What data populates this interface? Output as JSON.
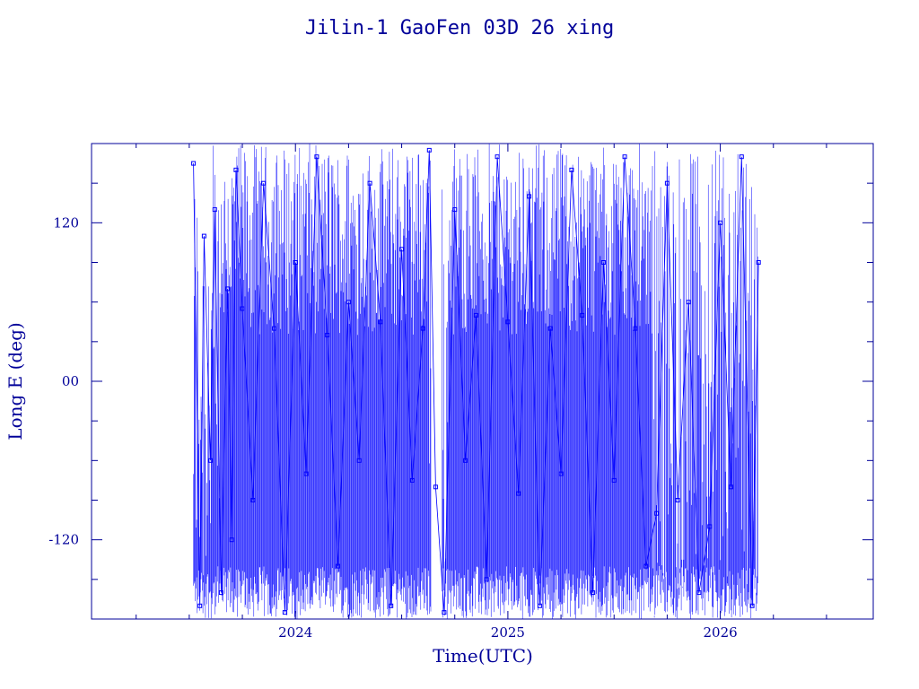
{
  "chart_data": {
    "type": "line",
    "title": "Jilin-1 GaoFen 03D 26 xing",
    "xlabel": "Time(UTC)",
    "ylabel": "Long E (deg)",
    "xlim": [
      2023.04,
      2026.72
    ],
    "ylim": [
      -180,
      180
    ],
    "x_ticks": [
      {
        "value": 2024,
        "label": "2024"
      },
      {
        "value": 2025,
        "label": "2025"
      },
      {
        "value": 2026,
        "label": "2026"
      }
    ],
    "y_ticks": [
      {
        "value": 120,
        "label": "120"
      },
      {
        "value": 0,
        "label": "00"
      },
      {
        "value": -120,
        "label": "-120"
      }
    ],
    "grid": false,
    "legend": "none",
    "series": [
      {
        "description_of_data": "sampled longitude crossings (deg E) over time; dense wrapping trace",
        "points": [
          [
            2023.52,
            165
          ],
          [
            2023.55,
            -170
          ],
          [
            2023.57,
            110
          ],
          [
            2023.6,
            -60
          ],
          [
            2023.62,
            130
          ],
          [
            2023.65,
            -160
          ],
          [
            2023.68,
            70
          ],
          [
            2023.7,
            -120
          ],
          [
            2023.72,
            160
          ],
          [
            2023.75,
            55
          ],
          [
            2023.8,
            -90
          ],
          [
            2023.85,
            150
          ],
          [
            2023.9,
            40
          ],
          [
            2023.95,
            -175
          ],
          [
            2024.0,
            90
          ],
          [
            2024.05,
            -70
          ],
          [
            2024.1,
            170
          ],
          [
            2024.15,
            35
          ],
          [
            2024.2,
            -140
          ],
          [
            2024.25,
            60
          ],
          [
            2024.3,
            -60
          ],
          [
            2024.35,
            150
          ],
          [
            2024.4,
            45
          ],
          [
            2024.45,
            -170
          ],
          [
            2024.5,
            100
          ],
          [
            2024.55,
            -75
          ],
          [
            2024.6,
            40
          ],
          [
            2024.63,
            175
          ],
          [
            2024.66,
            -80
          ],
          [
            2024.7,
            -175
          ],
          [
            2024.75,
            130
          ],
          [
            2024.8,
            -60
          ],
          [
            2024.85,
            50
          ],
          [
            2024.9,
            -150
          ],
          [
            2024.95,
            170
          ],
          [
            2025.0,
            45
          ],
          [
            2025.05,
            -85
          ],
          [
            2025.1,
            140
          ],
          [
            2025.15,
            -170
          ],
          [
            2025.2,
            40
          ],
          [
            2025.25,
            -70
          ],
          [
            2025.3,
            160
          ],
          [
            2025.35,
            50
          ],
          [
            2025.4,
            -160
          ],
          [
            2025.45,
            90
          ],
          [
            2025.5,
            -75
          ],
          [
            2025.55,
            170
          ],
          [
            2025.6,
            40
          ],
          [
            2025.65,
            -140
          ],
          [
            2025.7,
            -100
          ],
          [
            2025.75,
            150
          ],
          [
            2025.8,
            -90
          ],
          [
            2025.85,
            60
          ],
          [
            2025.9,
            -160
          ],
          [
            2025.95,
            -110
          ],
          [
            2026.0,
            120
          ],
          [
            2026.05,
            -80
          ],
          [
            2026.1,
            170
          ],
          [
            2026.15,
            -170
          ],
          [
            2026.18,
            90
          ]
        ]
      }
    ],
    "colors": {
      "frame": "#000099",
      "text": "#000099",
      "data_line": "#0000ff",
      "data_marker": "#0000ff"
    }
  }
}
